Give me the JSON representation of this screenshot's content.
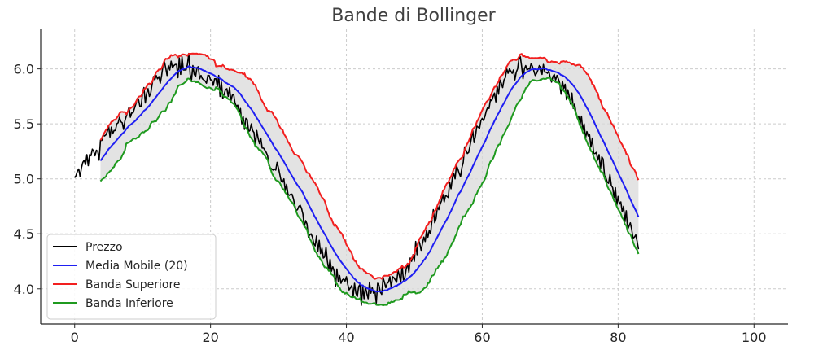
{
  "chart_data": {
    "type": "line",
    "title": "Bande di Bollinger",
    "xlabel": "",
    "ylabel": "",
    "xlim": [
      -5,
      105
    ],
    "ylim": [
      3.68,
      6.36
    ],
    "x_ticks": [
      0,
      20,
      40,
      60,
      80,
      100
    ],
    "y_ticks": [
      4.0,
      4.5,
      5.0,
      5.5,
      6.0
    ],
    "grid": true,
    "legend_position": "lower-left",
    "band_fill_color": "#d9d9d9",
    "x_start": 0,
    "x_step": 0.2,
    "window": 20,
    "series": [
      {
        "name": "Prezzo",
        "color": "#000000",
        "values": [
          5.01,
          5.03,
          5.07,
          5.09,
          5.02,
          5.1,
          5.15,
          5.17,
          5.13,
          5.22,
          5.12,
          5.22,
          5.21,
          5.27,
          5.25,
          5.21,
          5.26,
          5.25,
          5.17,
          5.35,
          5.35,
          5.4,
          5.39,
          5.4,
          5.43,
          5.48,
          5.38,
          5.47,
          5.41,
          5.44,
          5.44,
          5.5,
          5.51,
          5.56,
          5.52,
          5.51,
          5.45,
          5.53,
          5.57,
          5.61,
          5.65,
          5.56,
          5.6,
          5.6,
          5.64,
          5.68,
          5.73,
          5.72,
          5.66,
          5.66,
          5.79,
          5.83,
          5.69,
          5.78,
          5.82,
          5.75,
          5.78,
          5.86,
          5.93,
          5.9,
          5.94,
          5.91,
          5.93,
          5.87,
          5.94,
          6.03,
          6.07,
          6.01,
          5.94,
          6.03,
          5.99,
          6.07,
          6.01,
          6.03,
          6.04,
          6.04,
          5.92,
          6.1,
          5.95,
          6.11,
          5.99,
          5.99,
          5.99,
          6.04,
          6.14,
          5.95,
          5.9,
          6.03,
          5.95,
          5.93,
          6.01,
          6.02,
          5.91,
          5.94,
          5.91,
          5.9,
          5.89,
          5.87,
          5.94,
          5.94,
          5.9,
          5.9,
          5.85,
          5.91,
          5.91,
          5.84,
          5.94,
          5.75,
          5.88,
          5.73,
          5.77,
          5.81,
          5.82,
          5.75,
          5.83,
          5.71,
          5.76,
          5.77,
          5.69,
          5.66,
          5.67,
          5.6,
          5.64,
          5.5,
          5.57,
          5.45,
          5.55,
          5.54,
          5.43,
          5.44,
          5.5,
          5.44,
          5.42,
          5.3,
          5.44,
          5.37,
          5.32,
          5.37,
          5.28,
          5.28,
          5.26,
          5.24,
          5.21,
          5.12,
          5.1,
          5.09,
          5.08,
          5.09,
          5.08,
          5.15,
          5.1,
          5.04,
          4.98,
          4.97,
          5.0,
          4.89,
          4.95,
          4.86,
          4.85,
          4.86,
          4.86,
          4.82,
          4.76,
          4.71,
          4.72,
          4.75,
          4.76,
          4.73,
          4.68,
          4.56,
          4.62,
          4.59,
          4.47,
          4.49,
          4.5,
          4.47,
          4.41,
          4.39,
          4.48,
          4.34,
          4.44,
          4.32,
          4.37,
          4.28,
          4.29,
          4.38,
          4.25,
          4.17,
          4.27,
          4.16,
          4.2,
          4.16,
          4.02,
          4.18,
          4.07,
          4.12,
          4.05,
          4.08,
          4.09,
          4.07,
          4.11,
          4.04,
          3.99,
          4.01,
          4.03,
          3.93,
          4.05,
          3.96,
          3.93,
          4.02,
          4.04,
          3.85,
          4.02,
          3.91,
          4.02,
          3.96,
          3.91,
          4.06,
          3.96,
          4.01,
          3.96,
          3.98,
          3.87,
          4.05,
          4.03,
          3.97,
          3.95,
          4.1,
          4.06,
          4.01,
          4.05,
          4.06,
          4.11,
          4.01,
          4.11,
          4.1,
          4.08,
          4.06,
          4.17,
          4.12,
          4.06,
          4.21,
          4.08,
          4.1,
          4.18,
          4.23,
          4.15,
          4.28,
          4.25,
          4.31,
          4.25,
          4.43,
          4.31,
          4.45,
          4.41,
          4.35,
          4.41,
          4.47,
          4.43,
          4.53,
          4.47,
          4.53,
          4.5,
          4.63,
          4.72,
          4.6,
          4.64,
          4.75,
          4.72,
          4.77,
          4.8,
          4.86,
          4.79,
          4.85,
          4.84,
          4.83,
          4.97,
          4.91,
          5.01,
          5.05,
          5.0,
          5.12,
          5.09,
          5.05,
          5.02,
          5.1,
          5.15,
          5.29,
          5.26,
          5.23,
          5.24,
          5.3,
          5.37,
          5.44,
          5.33,
          5.39,
          5.48,
          5.47,
          5.46,
          5.53,
          5.55,
          5.53,
          5.57,
          5.62,
          5.65,
          5.64,
          5.72,
          5.71,
          5.75,
          5.78,
          5.7,
          5.84,
          5.77,
          5.9,
          5.87,
          5.83,
          5.9,
          5.92,
          6.0,
          5.96,
          6.0,
          5.98,
          5.96,
          5.99,
          5.9,
          5.97,
          6.0,
          6.09,
          6.11,
          6.02,
          5.91,
          6.0,
          6.03,
          5.99,
          6.0,
          6.0,
          6.05,
          6.02,
          5.98,
          5.94,
          5.96,
          5.99,
          6.03,
          6.02,
          5.95,
          6.04,
          5.97,
          5.97,
          5.96,
          5.98,
          5.92,
          5.88,
          5.93,
          5.95,
          5.9,
          5.94,
          5.91,
          5.87,
          5.77,
          5.89,
          5.82,
          5.86,
          5.72,
          5.81,
          5.75,
          5.68,
          5.78,
          5.64,
          5.68,
          5.6,
          5.55,
          5.57,
          5.49,
          5.57,
          5.44,
          5.5,
          5.37,
          5.43,
          5.39,
          5.4,
          5.29,
          5.37,
          5.23,
          5.23,
          5.24,
          5.17,
          5.22,
          5.09,
          5.2,
          5.18,
          5.03,
          5.01,
          4.97,
          4.96,
          5.04,
          4.94,
          4.92,
          4.83,
          4.92,
          4.76,
          4.84,
          4.77,
          4.79,
          4.7,
          4.75,
          4.61,
          4.71,
          4.54,
          4.57,
          4.6,
          4.54,
          4.46,
          4.47,
          4.49,
          4.43,
          4.36
        ]
      },
      {
        "name": "Media Mobile (20)",
        "color": "#1f1ff2",
        "values": []
      },
      {
        "name": "Banda Superiore",
        "color": "#f21f1f",
        "values": []
      },
      {
        "name": "Banda Inferiore",
        "color": "#1f9a1f",
        "values": []
      }
    ]
  }
}
